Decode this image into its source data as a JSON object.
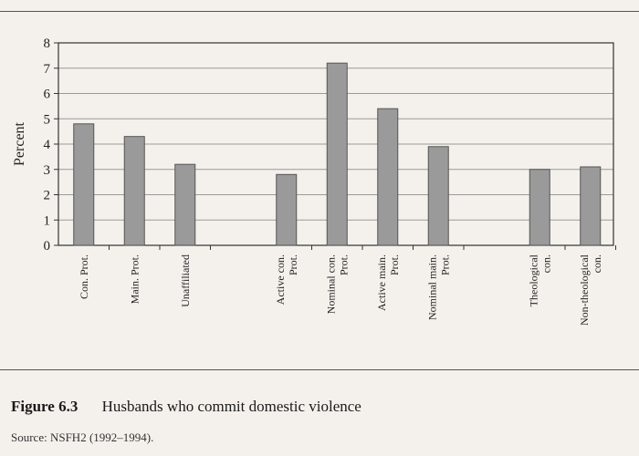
{
  "figure": {
    "label": "Figure 6.3",
    "title": "Husbands who commit domestic violence",
    "source": "Source: NSFH2 (1992–1994)."
  },
  "chart_data": {
    "type": "bar",
    "ylabel": "Percent",
    "ylim": [
      0,
      8
    ],
    "yticks": [
      0,
      1,
      2,
      3,
      4,
      5,
      6,
      7,
      8
    ],
    "grid": true,
    "bar_color": "#9a9a9a",
    "groups": [
      {
        "categories": [
          [
            "Con. Prot."
          ],
          [
            "Main. Prot."
          ],
          [
            "Unaffiliated"
          ]
        ],
        "values": [
          4.8,
          4.3,
          3.2
        ]
      },
      {
        "categories": [
          [
            "Active con.",
            "Prot."
          ],
          [
            "Nominal con.",
            "Prot."
          ],
          [
            "Active main.",
            "Prot."
          ],
          [
            "Nominal main.",
            "Prot."
          ]
        ],
        "values": [
          2.8,
          7.2,
          5.4,
          3.9
        ]
      },
      {
        "categories": [
          [
            "Theological",
            "con."
          ],
          [
            "Non-theological",
            "con."
          ]
        ],
        "values": [
          3.0,
          3.1
        ]
      }
    ]
  }
}
